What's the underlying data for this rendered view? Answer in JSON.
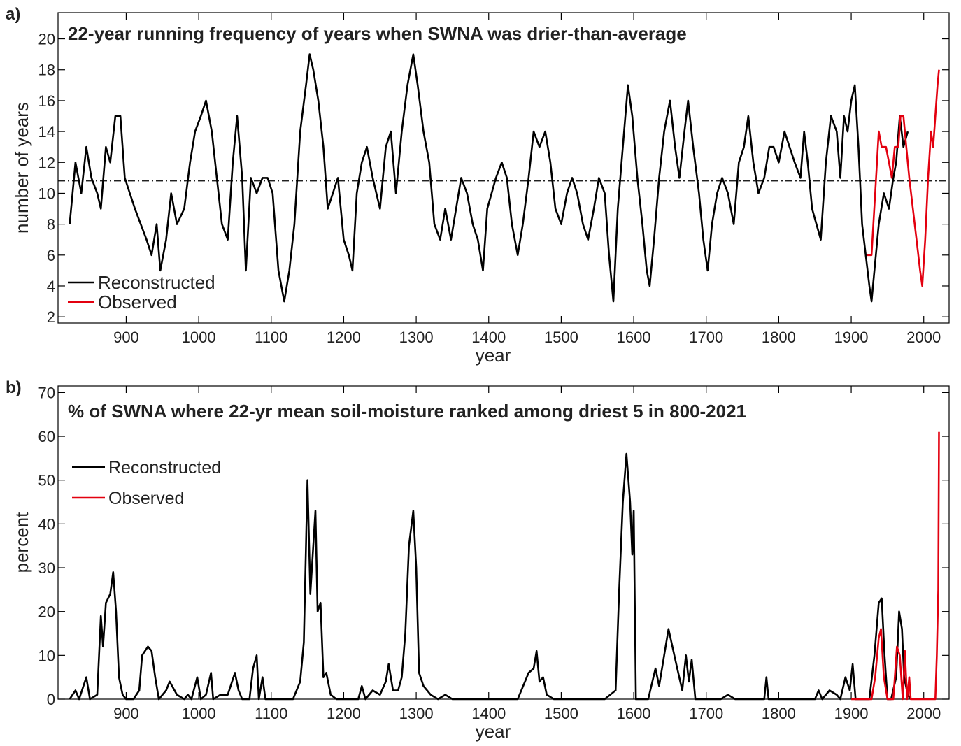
{
  "chart_data": [
    {
      "type": "line",
      "panel_label": "a)",
      "title": "22-year running frequency of years when SWNA was drier-than-average",
      "xlabel": "year",
      "ylabel": "number of years",
      "xlim": [
        806,
        2035
      ],
      "ylim": [
        1.6,
        21.7
      ],
      "xticks": [
        900,
        1000,
        1100,
        1200,
        1300,
        1400,
        1500,
        1600,
        1700,
        1800,
        1900,
        2000
      ],
      "yticks": [
        2,
        4,
        6,
        8,
        10,
        12,
        14,
        16,
        18,
        20
      ],
      "reference_line": 10.8,
      "series": [
        {
          "name": "Reconstructed",
          "color": "#000000",
          "x": [
            822,
            830,
            838,
            845,
            852,
            860,
            865,
            872,
            878,
            885,
            892,
            898,
            905,
            912,
            920,
            928,
            935,
            942,
            947,
            955,
            962,
            970,
            980,
            988,
            995,
            1003,
            1010,
            1018,
            1025,
            1032,
            1040,
            1047,
            1053,
            1060,
            1065,
            1072,
            1080,
            1088,
            1095,
            1102,
            1110,
            1118,
            1125,
            1132,
            1140,
            1148,
            1153,
            1158,
            1165,
            1172,
            1178,
            1185,
            1192,
            1200,
            1207,
            1212,
            1218,
            1225,
            1232,
            1240,
            1245,
            1250,
            1258,
            1265,
            1272,
            1280,
            1288,
            1296,
            1302,
            1310,
            1318,
            1325,
            1333,
            1340,
            1348,
            1355,
            1362,
            1370,
            1378,
            1385,
            1392,
            1398,
            1404,
            1410,
            1418,
            1425,
            1432,
            1440,
            1447,
            1455,
            1462,
            1470,
            1478,
            1485,
            1492,
            1500,
            1508,
            1515,
            1522,
            1530,
            1537,
            1545,
            1552,
            1560,
            1566,
            1572,
            1578,
            1585,
            1592,
            1598,
            1605,
            1612,
            1618,
            1622,
            1628,
            1635,
            1642,
            1650,
            1657,
            1663,
            1670,
            1675,
            1682,
            1690,
            1696,
            1702,
            1708,
            1715,
            1722,
            1730,
            1738,
            1745,
            1752,
            1758,
            1765,
            1772,
            1780,
            1787,
            1793,
            1800,
            1808,
            1815,
            1822,
            1830,
            1835,
            1840,
            1846,
            1852,
            1858,
            1865,
            1872,
            1880,
            1885,
            1890,
            1895,
            1900,
            1905,
            1910,
            1915,
            1920,
            1925,
            1928,
            1932,
            1938,
            1945,
            1952,
            1958,
            1962,
            1967,
            1972,
            1978
          ],
          "values": [
            8,
            12,
            10,
            13,
            11,
            10,
            9,
            13,
            12,
            15,
            15,
            11,
            10,
            9,
            8,
            7,
            6,
            8,
            5,
            7,
            10,
            8,
            9,
            12,
            14,
            15,
            16,
            14,
            11,
            8,
            7,
            12,
            15,
            11,
            5,
            11,
            10,
            11,
            11,
            10,
            5,
            3,
            5,
            8,
            14,
            17,
            19,
            18,
            16,
            13,
            9,
            10,
            11,
            7,
            6,
            5,
            10,
            12,
            13,
            11,
            10,
            9,
            13,
            14,
            10,
            14,
            17,
            19,
            17,
            14,
            12,
            8,
            7,
            9,
            7,
            9,
            11,
            10,
            8,
            7,
            5,
            9,
            10,
            11,
            12,
            11,
            8,
            6,
            8,
            11,
            14,
            13,
            14,
            12,
            9,
            8,
            10,
            11,
            10,
            8,
            7,
            9,
            11,
            10,
            6,
            3,
            9,
            13,
            17,
            15,
            11,
            8,
            5,
            4,
            7,
            11,
            14,
            16,
            13,
            11,
            14,
            16,
            13,
            10,
            7,
            5,
            8,
            10,
            11,
            10,
            8,
            12,
            13,
            15,
            12,
            10,
            11,
            13,
            13,
            12,
            14,
            13,
            12,
            11,
            14,
            12,
            9,
            8,
            7,
            12,
            15,
            14,
            11,
            15,
            14,
            16,
            17,
            13,
            8,
            6,
            4,
            3,
            5,
            8,
            10,
            9,
            11,
            12,
            15,
            13,
            14
          ]
        },
        {
          "name": "Observed",
          "color": "#e3000f",
          "x": [
            1922,
            1928,
            1933,
            1938,
            1942,
            1948,
            1952,
            1956,
            1960,
            1965,
            1968,
            1972,
            1976,
            1980,
            1985,
            1990,
            1995,
            1998,
            2002,
            2006,
            2010,
            2013,
            2016,
            2019,
            2021
          ],
          "values": [
            6,
            6,
            10,
            14,
            13,
            13,
            12,
            11,
            13,
            13,
            15,
            15,
            13,
            11,
            9,
            7,
            5,
            4,
            7,
            11,
            14,
            13,
            15,
            17,
            18
          ]
        }
      ]
    },
    {
      "type": "line",
      "panel_label": "b)",
      "title": "% of SWNA where 22-yr mean soil-moisture ranked among driest 5 in 800-2021",
      "xlabel": "year",
      "ylabel": "percent",
      "xlim": [
        806,
        2035
      ],
      "ylim": [
        0,
        71.5
      ],
      "xticks": [
        900,
        1000,
        1100,
        1200,
        1300,
        1400,
        1500,
        1600,
        1700,
        1800,
        1900,
        2000
      ],
      "yticks": [
        0,
        10,
        20,
        30,
        40,
        50,
        60,
        70
      ],
      "series": [
        {
          "name": "Reconstructed",
          "color": "#000000",
          "x": [
            822,
            830,
            835,
            845,
            850,
            860,
            865,
            868,
            872,
            878,
            882,
            886,
            890,
            895,
            900,
            910,
            918,
            922,
            930,
            935,
            940,
            945,
            955,
            960,
            970,
            980,
            985,
            990,
            998,
            1003,
            1010,
            1017,
            1020,
            1030,
            1040,
            1050,
            1055,
            1060,
            1070,
            1075,
            1080,
            1083,
            1088,
            1092,
            1100,
            1110,
            1120,
            1130,
            1140,
            1145,
            1150,
            1154,
            1158,
            1161,
            1164,
            1168,
            1172,
            1176,
            1182,
            1190,
            1200,
            1210,
            1220,
            1225,
            1230,
            1240,
            1250,
            1258,
            1262,
            1268,
            1275,
            1280,
            1285,
            1290,
            1296,
            1300,
            1304,
            1310,
            1320,
            1330,
            1340,
            1350,
            1360,
            1380,
            1400,
            1420,
            1440,
            1455,
            1462,
            1466,
            1470,
            1475,
            1480,
            1490,
            1510,
            1530,
            1550,
            1560,
            1575,
            1580,
            1585,
            1590,
            1595,
            1598,
            1600,
            1603,
            1610,
            1620,
            1630,
            1635,
            1642,
            1648,
            1652,
            1660,
            1667,
            1672,
            1676,
            1680,
            1685,
            1700,
            1720,
            1730,
            1740,
            1760,
            1780,
            1783,
            1786,
            1800,
            1830,
            1850,
            1855,
            1860,
            1870,
            1880,
            1885,
            1892,
            1898,
            1902,
            1906,
            1915,
            1925,
            1932,
            1938,
            1942,
            1946,
            1950,
            1955,
            1962,
            1966,
            1970,
            1973,
            1978,
            1982
          ],
          "values": [
            0,
            2,
            0,
            5,
            0,
            1,
            19,
            12,
            22,
            24,
            29,
            20,
            5,
            1,
            0,
            0,
            2,
            10,
            12,
            11,
            5,
            0,
            2,
            4,
            1,
            0,
            1,
            0,
            5,
            0,
            1,
            6,
            0,
            1,
            1,
            6,
            2,
            0,
            0,
            7,
            10,
            0,
            5,
            0,
            0,
            0,
            0,
            0,
            4,
            13,
            50,
            24,
            35,
            43,
            20,
            22,
            5,
            6,
            1,
            0,
            0,
            0,
            0,
            3,
            0,
            2,
            1,
            4,
            8,
            2,
            2,
            5,
            15,
            35,
            43,
            30,
            6,
            3,
            1,
            0,
            1,
            0,
            0,
            0,
            0,
            0,
            0,
            6,
            7,
            11,
            4,
            5,
            1,
            0,
            0,
            0,
            0,
            0,
            2,
            25,
            45,
            56,
            45,
            33,
            43,
            0,
            0,
            0,
            7,
            3,
            10,
            16,
            13,
            7,
            2,
            10,
            4,
            9,
            0,
            0,
            0,
            1,
            0,
            0,
            0,
            5,
            0,
            0,
            0,
            0,
            2,
            0,
            2,
            1,
            0,
            5,
            2,
            8,
            0,
            0,
            0,
            10,
            22,
            23,
            10,
            0,
            0,
            5,
            20,
            16,
            5,
            1,
            0
          ]
        },
        {
          "name": "Observed",
          "color": "#e3000f",
          "x": [
            1900,
            1920,
            1928,
            1933,
            1938,
            1941,
            1945,
            1950,
            1958,
            1963,
            1967,
            1971,
            1974,
            1977,
            1980,
            1982,
            1990,
            2000,
            2010,
            2016,
            2018,
            2020,
            2021
          ],
          "values": [
            0,
            0,
            0,
            5,
            14,
            16,
            5,
            0,
            0,
            12,
            10,
            0,
            11,
            0,
            5,
            0,
            0,
            0,
            0,
            0,
            10,
            25,
            61
          ]
        }
      ]
    }
  ]
}
